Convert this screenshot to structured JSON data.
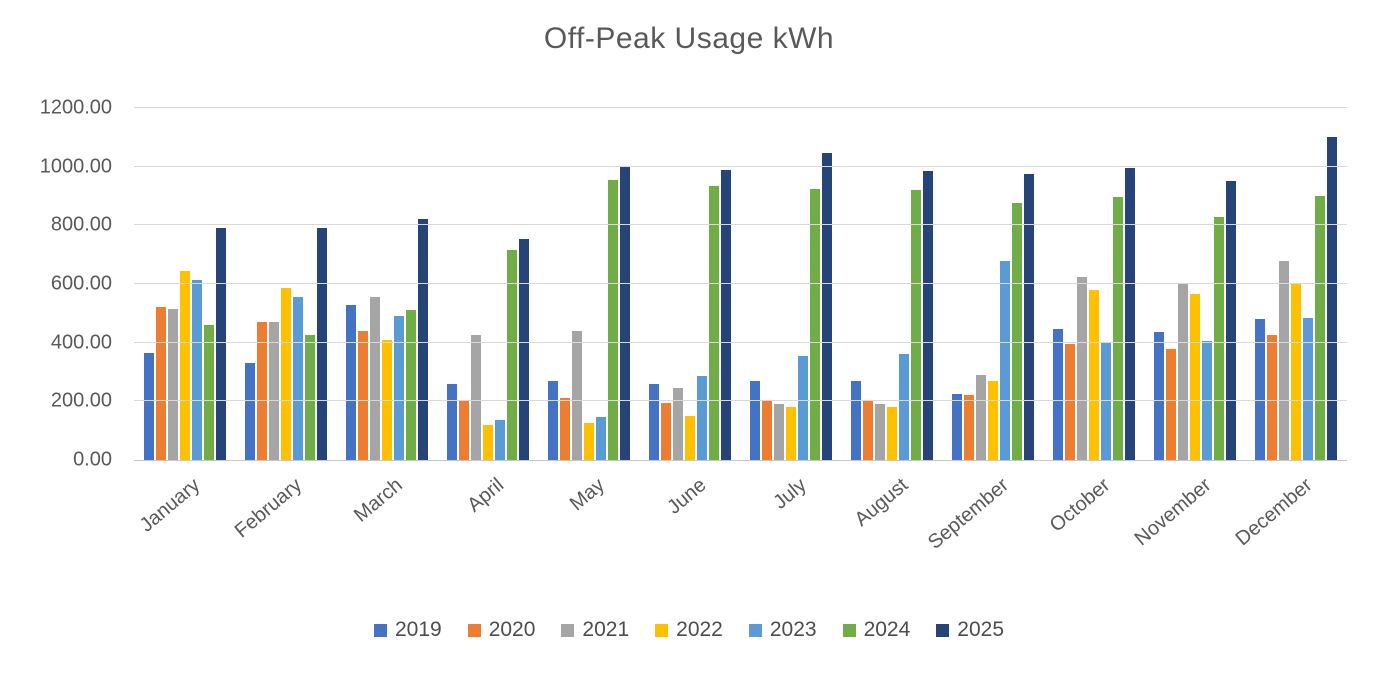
{
  "chart_data": {
    "type": "bar",
    "title": "Off-Peak Usage kWh",
    "categories": [
      "January",
      "February",
      "March",
      "April",
      "May",
      "June",
      "July",
      "August",
      "September",
      "October",
      "November",
      "December"
    ],
    "series": [
      {
        "name": "2019",
        "color": "#4472C4",
        "values": [
          365,
          330,
          530,
          260,
          270,
          260,
          270,
          270,
          225,
          445,
          435,
          480
        ]
      },
      {
        "name": "2020",
        "color": "#ED7D31",
        "values": [
          520,
          470,
          440,
          205,
          210,
          195,
          205,
          205,
          220,
          395,
          380,
          425
        ]
      },
      {
        "name": "2021",
        "color": "#A5A5A5",
        "values": [
          515,
          470,
          555,
          425,
          440,
          245,
          190,
          190,
          290,
          625,
          605,
          680
        ]
      },
      {
        "name": "2022",
        "color": "#FFC000",
        "values": [
          645,
          585,
          410,
          120,
          125,
          150,
          180,
          180,
          270,
          580,
          565,
          600
        ]
      },
      {
        "name": "2023",
        "color": "#5B9BD5",
        "values": [
          615,
          555,
          490,
          135,
          145,
          285,
          355,
          360,
          680,
          400,
          405,
          485
        ]
      },
      {
        "name": "2024",
        "color": "#70AD47",
        "values": [
          460,
          425,
          510,
          715,
          955,
          935,
          925,
          920,
          875,
          895,
          830,
          900
        ]
      },
      {
        "name": "2025",
        "color": "#264478",
        "values": [
          790,
          790,
          820,
          755,
          1000,
          990,
          1045,
          985,
          975,
          995,
          950,
          1100
        ]
      }
    ],
    "ylim": [
      0,
      1200
    ],
    "ytick_step": 200,
    "yticks": [
      "0.00",
      "200.00",
      "400.00",
      "600.00",
      "800.00",
      "1000.00",
      "1200.00"
    ],
    "grid": true,
    "legend_position": "bottom"
  },
  "styles": {
    "title_color": "#595959",
    "axis_label_color": "#595959",
    "legend_text_color": "#4D4D4D",
    "gridline_color": "#D9D9D9",
    "baseline_color": "#C6C6C6",
    "background": "#FFFFFF"
  }
}
